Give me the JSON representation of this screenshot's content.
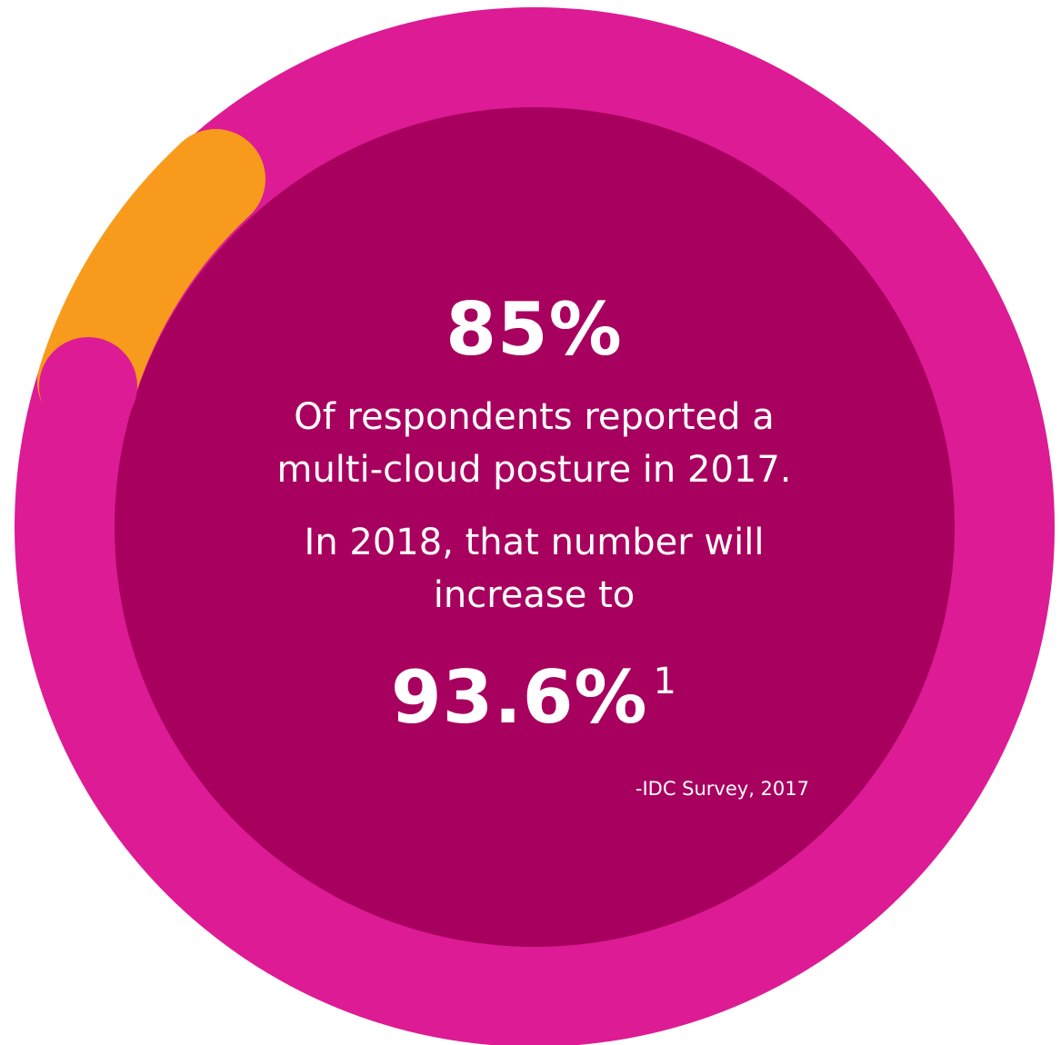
{
  "colors": {
    "background": "#ffffff",
    "outer_ring": "#dd1b94",
    "inner_circle": "#a8005f",
    "accent_orange": "#f89b1c",
    "text": "#ffffff"
  },
  "stat_2017": {
    "value": "85%"
  },
  "description_2017": {
    "line_1": "Of respondents reported a",
    "line_2": "multi-cloud posture in 2017."
  },
  "description_2018": {
    "line_1": "In 2018, that number will",
    "line_2": "increase to"
  },
  "stat_2018": {
    "value": "93.6%",
    "footnote_marker": "1"
  },
  "source": "-IDC Survey, 2017"
}
